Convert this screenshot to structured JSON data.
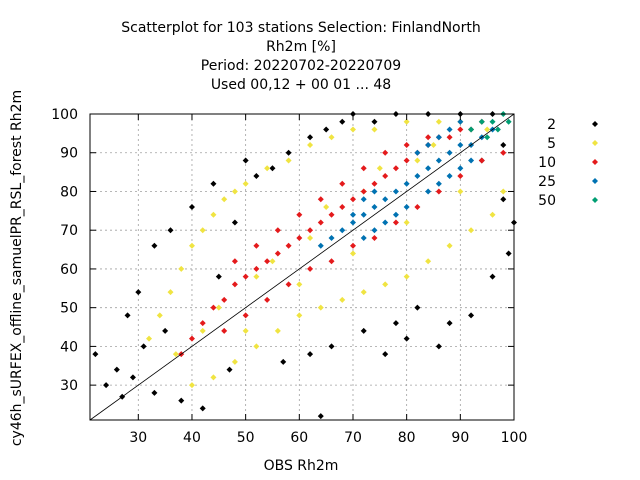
{
  "chart_data": {
    "type": "scatter",
    "title_lines": [
      "Scatterplot for  103 stations Selection: FinlandNorth",
      "Rh2m [%]",
      "Period: 20220702-20220709",
      "Used  00,12  + 00 01 ... 48"
    ],
    "xlabel": "OBS Rh2m",
    "ylabel": "cy46h_sURFEX_offline_samuelPR_RSL_forest Rh2m",
    "xlim": [
      21,
      100
    ],
    "ylim": [
      21,
      100
    ],
    "xticks": [
      30,
      40,
      50,
      60,
      70,
      80,
      90,
      100
    ],
    "yticks": [
      30,
      40,
      50,
      60,
      70,
      80,
      90,
      100
    ],
    "grid": true,
    "legend_position": "right",
    "legend": [
      {
        "label": "2",
        "color": "#000000"
      },
      {
        "label": "5",
        "color": "#f0e442"
      },
      {
        "label": "10",
        "color": "#e41a1c"
      },
      {
        "label": "25",
        "color": "#0072b2"
      },
      {
        "label": "50",
        "color": "#009e73"
      }
    ],
    "series": [
      {
        "name": "2",
        "color": "#000000",
        "points": [
          [
            22,
            38
          ],
          [
            24,
            30
          ],
          [
            26,
            34
          ],
          [
            27,
            27
          ],
          [
            29,
            32
          ],
          [
            31,
            40
          ],
          [
            33,
            28
          ],
          [
            35,
            44
          ],
          [
            38,
            26
          ],
          [
            42,
            24
          ],
          [
            45,
            58
          ],
          [
            48,
            72
          ],
          [
            52,
            84
          ],
          [
            55,
            86
          ],
          [
            58,
            90
          ],
          [
            62,
            94
          ],
          [
            65,
            96
          ],
          [
            68,
            98
          ],
          [
            70,
            100
          ],
          [
            74,
            98
          ],
          [
            78,
            100
          ],
          [
            84,
            100
          ],
          [
            90,
            100
          ],
          [
            96,
            100
          ],
          [
            64,
            22
          ],
          [
            72,
            44
          ],
          [
            76,
            38
          ],
          [
            80,
            42
          ],
          [
            86,
            40
          ],
          [
            92,
            48
          ],
          [
            96,
            58
          ],
          [
            99,
            64
          ],
          [
            100,
            72
          ],
          [
            98,
            78
          ],
          [
            57,
            36
          ],
          [
            66,
            40
          ],
          [
            88,
            46
          ],
          [
            40,
            76
          ],
          [
            36,
            70
          ],
          [
            33,
            66
          ],
          [
            30,
            54
          ],
          [
            28,
            48
          ],
          [
            44,
            82
          ],
          [
            50,
            88
          ],
          [
            98,
            92
          ],
          [
            94,
            88
          ],
          [
            78,
            46
          ],
          [
            82,
            50
          ],
          [
            62,
            38
          ],
          [
            47,
            34
          ]
        ]
      },
      {
        "name": "5",
        "color": "#f0e442",
        "points": [
          [
            32,
            42
          ],
          [
            34,
            48
          ],
          [
            36,
            54
          ],
          [
            38,
            60
          ],
          [
            40,
            66
          ],
          [
            42,
            70
          ],
          [
            44,
            74
          ],
          [
            46,
            78
          ],
          [
            48,
            80
          ],
          [
            50,
            82
          ],
          [
            54,
            86
          ],
          [
            58,
            88
          ],
          [
            62,
            92
          ],
          [
            66,
            94
          ],
          [
            70,
            96
          ],
          [
            74,
            96
          ],
          [
            80,
            98
          ],
          [
            86,
            98
          ],
          [
            90,
            98
          ],
          [
            40,
            30
          ],
          [
            44,
            32
          ],
          [
            48,
            36
          ],
          [
            52,
            40
          ],
          [
            56,
            44
          ],
          [
            60,
            48
          ],
          [
            64,
            50
          ],
          [
            68,
            52
          ],
          [
            72,
            54
          ],
          [
            76,
            56
          ],
          [
            80,
            58
          ],
          [
            84,
            62
          ],
          [
            88,
            66
          ],
          [
            92,
            70
          ],
          [
            96,
            74
          ],
          [
            98,
            80
          ],
          [
            37,
            38
          ],
          [
            45,
            50
          ],
          [
            55,
            62
          ],
          [
            65,
            76
          ],
          [
            75,
            86
          ],
          [
            85,
            92
          ],
          [
            95,
            96
          ],
          [
            50,
            44
          ],
          [
            60,
            56
          ],
          [
            70,
            64
          ],
          [
            80,
            72
          ],
          [
            90,
            80
          ],
          [
            42,
            44
          ],
          [
            52,
            58
          ],
          [
            62,
            68
          ],
          [
            72,
            80
          ],
          [
            82,
            88
          ]
        ]
      },
      {
        "name": "10",
        "color": "#e41a1c",
        "points": [
          [
            38,
            38
          ],
          [
            40,
            42
          ],
          [
            42,
            46
          ],
          [
            44,
            50
          ],
          [
            46,
            52
          ],
          [
            48,
            56
          ],
          [
            50,
            58
          ],
          [
            52,
            60
          ],
          [
            54,
            62
          ],
          [
            56,
            64
          ],
          [
            58,
            66
          ],
          [
            60,
            68
          ],
          [
            62,
            70
          ],
          [
            64,
            72
          ],
          [
            66,
            74
          ],
          [
            68,
            76
          ],
          [
            70,
            78
          ],
          [
            72,
            80
          ],
          [
            74,
            82
          ],
          [
            76,
            84
          ],
          [
            78,
            86
          ],
          [
            80,
            88
          ],
          [
            82,
            90
          ],
          [
            84,
            92
          ],
          [
            86,
            94
          ],
          [
            88,
            94
          ],
          [
            90,
            96
          ],
          [
            92,
            96
          ],
          [
            94,
            98
          ],
          [
            46,
            44
          ],
          [
            50,
            48
          ],
          [
            54,
            52
          ],
          [
            58,
            56
          ],
          [
            62,
            60
          ],
          [
            66,
            62
          ],
          [
            70,
            66
          ],
          [
            74,
            68
          ],
          [
            78,
            72
          ],
          [
            82,
            76
          ],
          [
            86,
            80
          ],
          [
            90,
            84
          ],
          [
            94,
            88
          ],
          [
            98,
            90
          ],
          [
            48,
            62
          ],
          [
            52,
            66
          ],
          [
            56,
            70
          ],
          [
            60,
            74
          ],
          [
            64,
            78
          ],
          [
            68,
            82
          ],
          [
            72,
            86
          ],
          [
            76,
            90
          ],
          [
            80,
            92
          ],
          [
            84,
            94
          ]
        ]
      },
      {
        "name": "25",
        "color": "#0072b2",
        "points": [
          [
            64,
            66
          ],
          [
            66,
            68
          ],
          [
            68,
            70
          ],
          [
            70,
            72
          ],
          [
            72,
            74
          ],
          [
            74,
            76
          ],
          [
            76,
            78
          ],
          [
            78,
            80
          ],
          [
            80,
            82
          ],
          [
            82,
            84
          ],
          [
            84,
            86
          ],
          [
            86,
            88
          ],
          [
            88,
            90
          ],
          [
            90,
            92
          ],
          [
            92,
            92
          ],
          [
            94,
            94
          ],
          [
            96,
            96
          ],
          [
            84,
            80
          ],
          [
            86,
            82
          ],
          [
            88,
            84
          ],
          [
            90,
            86
          ],
          [
            92,
            88
          ],
          [
            82,
            90
          ],
          [
            84,
            92
          ],
          [
            86,
            94
          ],
          [
            88,
            96
          ],
          [
            90,
            98
          ],
          [
            80,
            76
          ],
          [
            78,
            74
          ],
          [
            76,
            72
          ],
          [
            74,
            70
          ],
          [
            72,
            68
          ],
          [
            70,
            74
          ],
          [
            72,
            78
          ],
          [
            74,
            80
          ]
        ]
      },
      {
        "name": "50",
        "color": "#009e73",
        "points": [
          [
            92,
            96
          ],
          [
            94,
            98
          ],
          [
            96,
            98
          ],
          [
            98,
            100
          ],
          [
            99,
            98
          ],
          [
            97,
            96
          ],
          [
            95,
            94
          ]
        ]
      }
    ]
  }
}
